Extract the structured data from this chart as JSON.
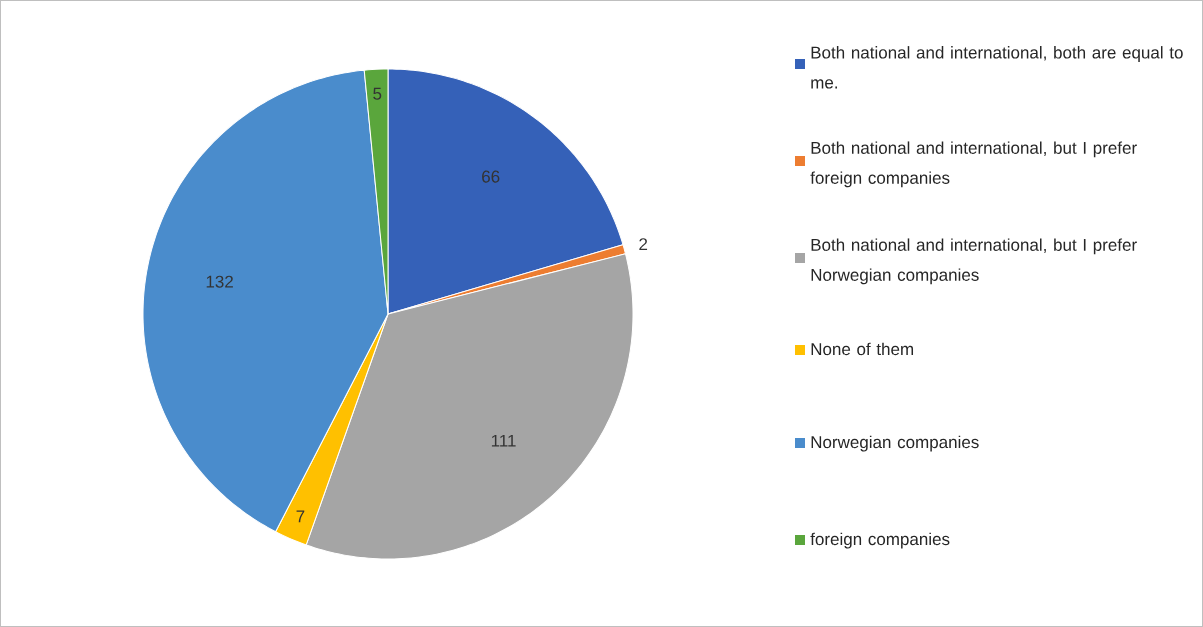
{
  "chart_data": {
    "type": "pie",
    "categories": [
      "Both national and international, both are equal to me.",
      "Both national and international, but I prefer foreign companies",
      "Both national and international, but I prefer Norwegian companies",
      "None of them",
      "Norwegian companies",
      "foreign companies"
    ],
    "values": [
      66,
      2,
      111,
      7,
      132,
      5
    ],
    "colors": [
      "#3561b8",
      "#ed7d31",
      "#a5a5a5",
      "#ffc000",
      "#4a8ccc",
      "#5aa63c"
    ],
    "data_labels": true,
    "legend": "right"
  }
}
